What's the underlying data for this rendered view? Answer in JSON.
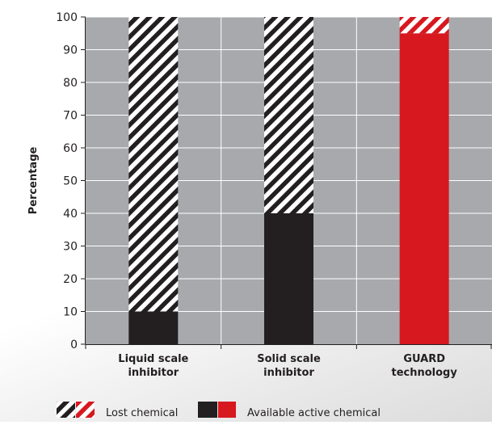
{
  "chart_data": {
    "type": "bar",
    "stacked": true,
    "ylabel": "Percentage",
    "xlabel": "",
    "ylim": [
      0,
      100
    ],
    "yticks": [
      0,
      10,
      20,
      30,
      40,
      50,
      60,
      70,
      80,
      90,
      100
    ],
    "grid": true,
    "legend_position": "bottom",
    "categories": [
      [
        "Liquid scale",
        "inhibitor"
      ],
      [
        "Solid scale",
        "inhibitor"
      ],
      [
        "GUARD",
        "technology"
      ]
    ],
    "series": [
      {
        "name": "Available active chemical",
        "values": [
          10,
          40,
          95
        ]
      },
      {
        "name": "Lost chemical",
        "values": [
          90,
          60,
          5
        ]
      }
    ],
    "bar_colors": [
      "#231f20",
      "#231f20",
      "#d7181f"
    ],
    "plot_background": "#a7a9ac",
    "stripe_background": "#ffffff"
  }
}
